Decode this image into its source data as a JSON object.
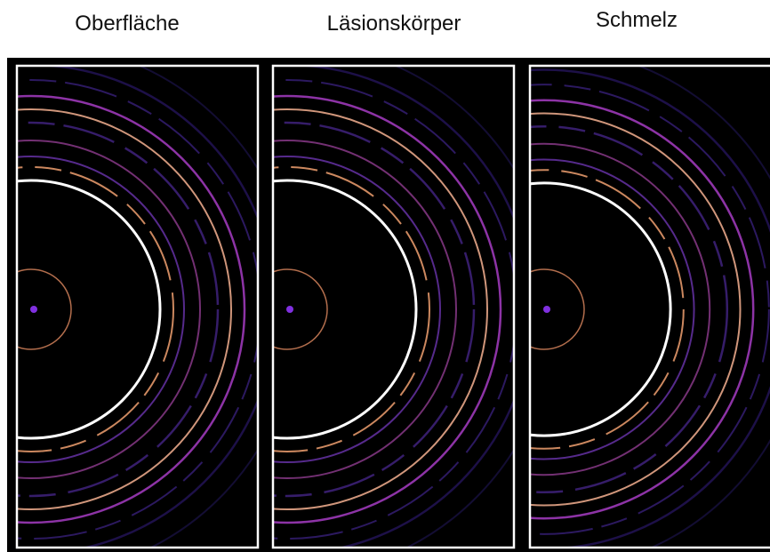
{
  "panels": [
    {
      "label": "Oberfläche"
    },
    {
      "label": "Läsionskörper"
    },
    {
      "label": "Schmelz"
    }
  ]
}
